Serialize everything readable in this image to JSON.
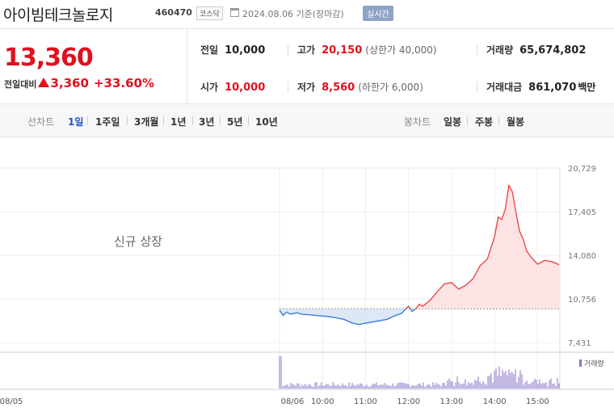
{
  "header": {
    "stock_name": "아이빔테크놀로지",
    "stock_code": "460470",
    "market": "코스닥",
    "date": "2024.08.06 기준(장마감)",
    "realtime_label": "실시간"
  },
  "price": {
    "current": "13,360",
    "change_label": "전일대비",
    "change": "3,360",
    "change_pct": "+33.60%",
    "up_color": "#e0111e",
    "down_color": "#1d56c9"
  },
  "info": {
    "prev_close": {
      "label": "전일",
      "value": "10,000"
    },
    "high": {
      "label": "고가",
      "value": "20,150",
      "sub": "(상한가 40,000)"
    },
    "volume": {
      "label": "거래량",
      "value": "65,674,802"
    },
    "open": {
      "label": "시가",
      "value": "10,000"
    },
    "low": {
      "label": "저가",
      "value": "8,560",
      "sub": "(하한가 6,000)"
    },
    "trade_value": {
      "label": "거래대금",
      "value": "861,070",
      "unit": "백만"
    }
  },
  "tabs": {
    "line_label": "선차트",
    "line_tabs": [
      "1일",
      "1주일",
      "3개월",
      "1년",
      "3년",
      "5년",
      "10년"
    ],
    "active": "1일",
    "candle_label": "봉차트",
    "candle_tabs": [
      "일봉",
      "주봉",
      "월봉"
    ]
  },
  "chart_data": {
    "type": "line",
    "note_text": "신규 상장",
    "y_ticks": [
      "20,729",
      "17,405",
      "14,080",
      "10,756",
      "7,431"
    ],
    "y_values": [
      20729,
      17405,
      14080,
      10756,
      7431
    ],
    "ylim": [
      7431,
      20729
    ],
    "baseline": 10000,
    "x_ticks": [
      "08/05",
      "08/06",
      "10:00",
      "11:00",
      "12:00",
      "13:00",
      "14:00",
      "15:00"
    ],
    "volume_legend": "거래량",
    "up_fill": "#fde3e3",
    "down_fill": "#dde8f7",
    "series": [
      {
        "x": [
          "09:00",
          "09:05",
          "09:10",
          "09:15",
          "09:20",
          "09:25",
          "09:30",
          "09:40",
          "09:50",
          "10:00",
          "10:10",
          "10:20",
          "10:30",
          "10:40",
          "10:50",
          "11:00",
          "11:10",
          "11:20",
          "11:30",
          "11:40",
          "11:50",
          "12:00",
          "12:05",
          "12:10",
          "12:15",
          "12:20",
          "12:30",
          "12:40",
          "12:50",
          "13:00",
          "13:10",
          "13:20",
          "13:30",
          "13:40",
          "13:50",
          "14:00",
          "14:05",
          "14:10",
          "14:15",
          "14:20",
          "14:25",
          "14:30",
          "14:35",
          "14:40",
          "14:45",
          "14:50",
          "15:00",
          "15:10",
          "15:20",
          "15:30"
        ],
        "values": [
          9900,
          9500,
          9750,
          9600,
          9650,
          9700,
          9600,
          9550,
          9500,
          9450,
          9400,
          9300,
          9200,
          8950,
          8800,
          8900,
          9000,
          9100,
          9200,
          9450,
          9650,
          10200,
          9800,
          10000,
          10350,
          10200,
          10650,
          11300,
          11900,
          12000,
          11500,
          11800,
          12300,
          13300,
          13800,
          15500,
          17000,
          16800,
          17600,
          19400,
          18900,
          17300,
          15900,
          15300,
          14400,
          14000,
          13400,
          13700,
          13600,
          13360
        ]
      }
    ]
  }
}
